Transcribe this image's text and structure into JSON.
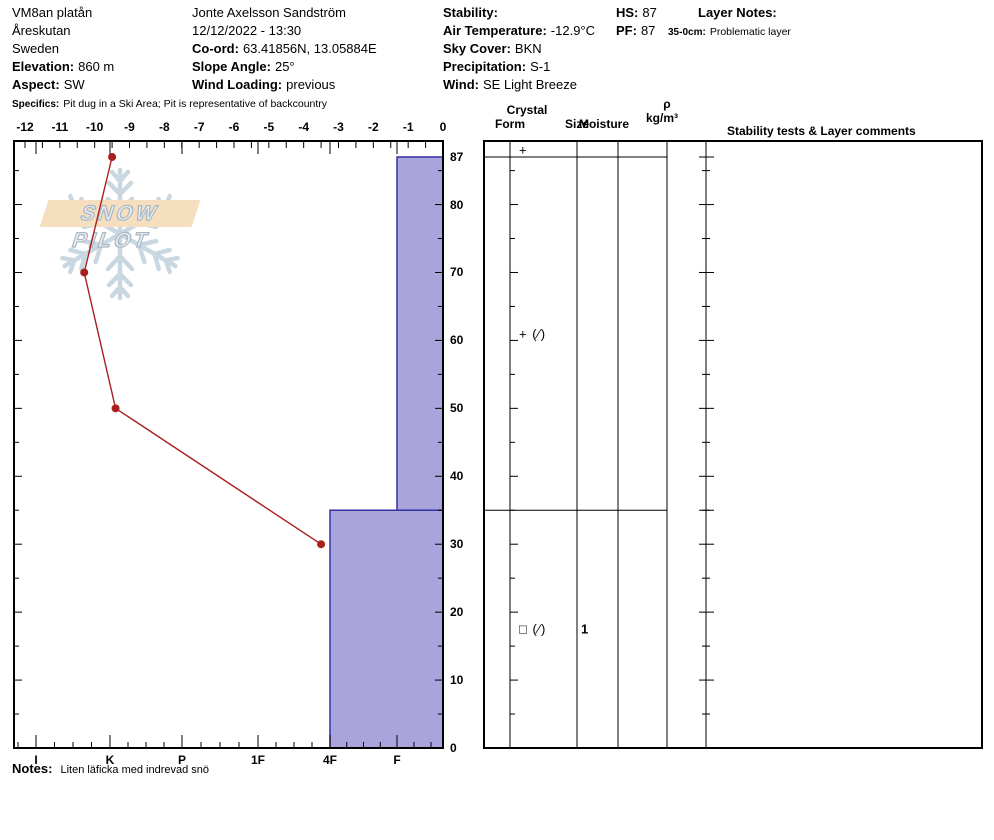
{
  "header": {
    "columns": [
      {
        "name": "location",
        "rows": [
          {
            "value": "VM8an platån"
          },
          {
            "value": "Åreskutan"
          },
          {
            "value": "Sweden"
          },
          {
            "label": "Elevation:",
            "value": "860 m"
          },
          {
            "label": "Aspect:",
            "value": "SW"
          },
          {
            "label": "Specifics:",
            "value": "Pit dug in a Ski Area; Pit is representative of backcountry",
            "small": true
          }
        ]
      },
      {
        "name": "observer",
        "rows": [
          {
            "value": "Jonte Axelsson Sandström"
          },
          {
            "value": "12/12/2022 - 13:30"
          },
          {
            "label": "Co-ord:",
            "value": "63.41856N, 13.05884E"
          },
          {
            "label": "Slope Angle:",
            "value": "25°"
          },
          {
            "label": "Wind Loading:",
            "value": "previous"
          }
        ]
      },
      {
        "name": "conditions",
        "rows": [
          {
            "label": "Stability:",
            "value": ""
          },
          {
            "label": "Air Temperature:",
            "value": "-12.9°C"
          },
          {
            "label": "Sky Cover:",
            "value": "BKN"
          },
          {
            "label": "Precipitation:",
            "value": "S-1"
          },
          {
            "label": "Wind:",
            "value": "SE Light Breeze"
          }
        ]
      },
      {
        "name": "snow-depth",
        "rows": [
          {
            "label": "HS:",
            "value": "87"
          },
          {
            "label": "PF:",
            "value": "87"
          }
        ]
      },
      {
        "name": "layer-notes",
        "rows": [
          {
            "label": "Layer Notes:",
            "value": "",
            "indent": true
          },
          {
            "label": "35-0cm:",
            "value": "Problematic layer",
            "small": true
          }
        ]
      }
    ]
  },
  "logo": {
    "text": "SNOW PILOT"
  },
  "chart_data": {
    "type": "snow-profile",
    "title": "",
    "temperature_axis": {
      "unit": "°C",
      "tick_labels": [
        -12,
        -11,
        -10,
        -9,
        -8,
        -7,
        -6,
        -5,
        -4,
        -3,
        -2,
        -1,
        0
      ],
      "range": [
        -12.3,
        0
      ],
      "position": "top"
    },
    "depth_axis": {
      "unit": "cm",
      "tick_labels": [
        87,
        80,
        70,
        60,
        50,
        40,
        30,
        20,
        10,
        0
      ],
      "range": [
        0,
        89.4
      ],
      "position": "right"
    },
    "hardness_axis": {
      "categories": [
        "I",
        "K",
        "P",
        "1F",
        "4F",
        "F"
      ],
      "position": "bottom"
    },
    "temperature_profile": [
      {
        "depth_cm": 87,
        "temp_c": -9.5
      },
      {
        "depth_cm": 70,
        "temp_c": -10.3
      },
      {
        "depth_cm": 50,
        "temp_c": -9.4
      },
      {
        "depth_cm": 30,
        "temp_c": -3.5
      }
    ],
    "surface": {
      "form": "+",
      "height_cm": 87
    },
    "layers": [
      {
        "top_cm": 87,
        "bottom_cm": 35,
        "hardness": "F",
        "form": "+ (∕)",
        "size": "",
        "moisture": "",
        "density": "",
        "comments": ""
      },
      {
        "top_cm": 35,
        "bottom_cm": 0,
        "hardness": "4F",
        "form": "□ (∕)",
        "size": "1",
        "moisture": "",
        "density": "",
        "comments": ""
      }
    ]
  },
  "layer_table": {
    "headers": {
      "crystal": "Crystal",
      "form": "Form",
      "size": "Size",
      "moisture": "Moisture",
      "rho": "ρ",
      "rho_unit": "kg/m³",
      "comments": "Stability tests & Layer comments"
    }
  },
  "notes": {
    "label": "Notes:",
    "text": "Liten läficka med indrevad snö"
  },
  "colors": {
    "bar_fill": "#a9a4dc",
    "bar_border": "#3232a0",
    "temp_line": "#a91f1f",
    "logo_banner": "#f5dfbe",
    "logo_flake": "#c9d7e1",
    "logo_text_outline": "#a8b6c2"
  }
}
